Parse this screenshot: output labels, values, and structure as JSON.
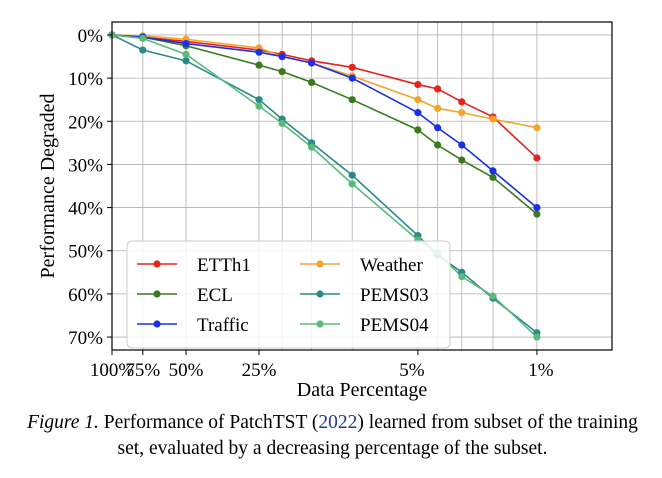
{
  "caption": {
    "figure_label": "Figure 1.",
    "text_before": " Performance of PatchTST (",
    "citation": "2022",
    "text_after": ") learned from subset of the training set, evaluated by a decreasing percentage of the subset."
  },
  "chart_data": {
    "type": "line",
    "xlabel": "Data Percentage",
    "ylabel": "Performance Degraded",
    "x_scale": "log-like (remaining data percentage, decreasing left to right)",
    "xticks": [
      "100%",
      "75%",
      "50%",
      "25%",
      "5%",
      "1%"
    ],
    "yticks": [
      "0%",
      "10%",
      "20%",
      "30%",
      "40%",
      "50%",
      "60%",
      "70%"
    ],
    "ylim": [
      0,
      70
    ],
    "y_inverted": true,
    "grid": true,
    "legend_position": "lower-left",
    "x": [
      100,
      75,
      50,
      25,
      20,
      15,
      10,
      5,
      4,
      3,
      2,
      1
    ],
    "series": [
      {
        "name": "ETTh1",
        "color": "#e8231d",
        "values": [
          0,
          0.5,
          1.5,
          3.5,
          4.5,
          6,
          7.5,
          11.5,
          12.5,
          15.5,
          19,
          28.5
        ]
      },
      {
        "name": "Weather",
        "color": "#f4a42b",
        "values": [
          0,
          0.2,
          1,
          3,
          5,
          6.5,
          9.5,
          15,
          17,
          18,
          19.5,
          21.5
        ]
      },
      {
        "name": "ECL",
        "color": "#3a7a1f",
        "values": [
          0,
          0.5,
          2.5,
          7,
          8.5,
          11,
          15,
          22,
          25.5,
          29,
          33,
          41.5
        ]
      },
      {
        "name": "PEMS03",
        "color": "#2a8a8a",
        "values": [
          0,
          3.5,
          6,
          15,
          19.5,
          25,
          32.5,
          46.5,
          51,
          55,
          61,
          69
        ]
      },
      {
        "name": "Traffic",
        "color": "#1a2fe6",
        "values": [
          0,
          0.5,
          2,
          4,
          5,
          6.5,
          10,
          18,
          21.5,
          25.5,
          31.5,
          40
        ]
      },
      {
        "name": "PEMS04",
        "color": "#5aba7a",
        "values": [
          0,
          0.8,
          4.5,
          16.5,
          20.5,
          26,
          34.5,
          47.5,
          50.5,
          56,
          60.5,
          70
        ]
      }
    ],
    "legend": [
      [
        "ETTh1",
        "Weather"
      ],
      [
        "ECL",
        "PEMS03"
      ],
      [
        "Traffic",
        "PEMS04"
      ]
    ]
  }
}
